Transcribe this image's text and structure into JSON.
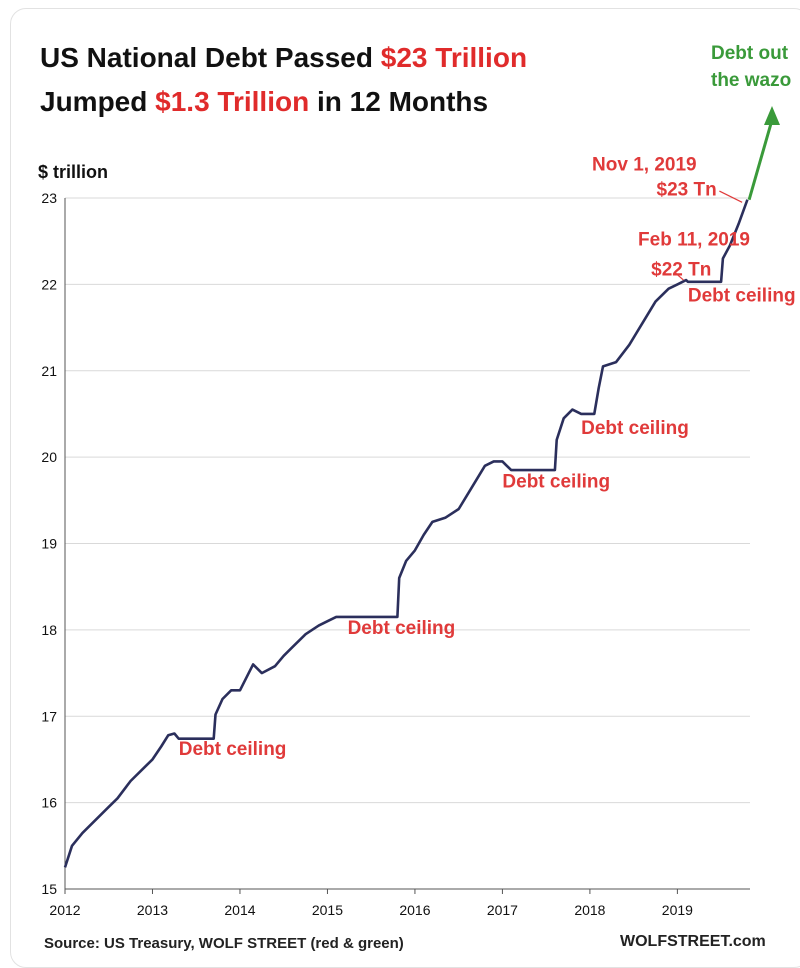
{
  "header": {
    "title_line1_prefix": "US National Debt Passed ",
    "title_line1_highlight": "$23 Trillion",
    "title_line2_prefix": "Jumped ",
    "title_line2_highlight": "$1.3 Trillion",
    "title_line2_suffix": " in 12 Months"
  },
  "footer": {
    "source": "Source: US Treasury, WOLF STREET  (red & green)",
    "brand": "WOLFSTREET.com"
  },
  "colors": {
    "line": "#2b2f5c",
    "highlight": "#e02b2b",
    "annotation": "#e03a3a",
    "green": "#3a9a3a",
    "grid": "#d9d9d9"
  },
  "chart_data": {
    "type": "line",
    "ylabel": "$ trillion",
    "xlabel": "",
    "xlim": [
      2012,
      2019.83
    ],
    "ylim": [
      15,
      23
    ],
    "yticks": [
      15,
      16,
      17,
      18,
      19,
      20,
      21,
      22,
      23
    ],
    "xticks": [
      2012,
      2013,
      2014,
      2015,
      2016,
      2017,
      2018,
      2019
    ],
    "grid": "horizontal",
    "series": [
      {
        "x": [
          2012.0,
          2012.08,
          2012.2,
          2012.35,
          2012.5,
          2012.6,
          2012.75,
          2012.9,
          2013.0,
          2013.1,
          2013.18,
          2013.25,
          2013.3,
          2013.7,
          2013.72,
          2013.8,
          2013.9,
          2014.0,
          2014.1,
          2014.15,
          2014.25,
          2014.4,
          2014.5,
          2014.6,
          2014.75,
          2014.9,
          2015.0,
          2015.1,
          2015.2,
          2015.8,
          2015.82,
          2015.9,
          2016.0,
          2016.1,
          2016.2,
          2016.35,
          2016.5,
          2016.65,
          2016.8,
          2016.9,
          2017.0,
          2017.05,
          2017.1,
          2017.6,
          2017.62,
          2017.7,
          2017.8,
          2017.9,
          2018.05,
          2018.1,
          2018.15,
          2018.3,
          2018.45,
          2018.6,
          2018.75,
          2018.9,
          2019.0,
          2019.1,
          2019.12,
          2019.5,
          2019.52,
          2019.6,
          2019.7,
          2019.8
        ],
        "y": [
          15.25,
          15.5,
          15.65,
          15.8,
          15.95,
          16.05,
          16.25,
          16.4,
          16.5,
          16.65,
          16.78,
          16.8,
          16.74,
          16.74,
          17.02,
          17.2,
          17.3,
          17.3,
          17.5,
          17.6,
          17.5,
          17.58,
          17.7,
          17.8,
          17.95,
          18.05,
          18.1,
          18.15,
          18.15,
          18.15,
          18.6,
          18.8,
          18.92,
          19.1,
          19.25,
          19.3,
          19.4,
          19.65,
          19.9,
          19.95,
          19.95,
          19.9,
          19.85,
          19.85,
          20.2,
          20.45,
          20.55,
          20.5,
          20.5,
          20.8,
          21.05,
          21.1,
          21.3,
          21.55,
          21.8,
          21.95,
          22.0,
          22.05,
          22.03,
          22.03,
          22.3,
          22.45,
          22.7,
          22.98
        ]
      }
    ],
    "annotations": [
      {
        "text": "Debt ceiling",
        "x": 2013.3,
        "y": 16.55
      },
      {
        "text": "Debt ceiling",
        "x": 2015.23,
        "y": 17.95
      },
      {
        "text": "Debt ceiling",
        "x": 2017.0,
        "y": 19.65
      },
      {
        "text": "Debt ceiling",
        "x": 2017.9,
        "y": 20.27
      },
      {
        "text": "Debt ceiling",
        "x": 2019.12,
        "y": 21.8
      },
      {
        "text": "Feb 11, 2019",
        "x": 2018.55,
        "y": 22.45
      },
      {
        "text": "$22 Tn",
        "x": 2018.7,
        "y": 22.1
      },
      {
        "text": "Nov 1, 2019",
        "x": 2019.22,
        "y": 23.32
      },
      {
        "text": "$23 Tn",
        "x": 2019.45,
        "y": 23.03
      }
    ],
    "green_annotation": [
      "Debt out",
      "the wazo"
    ]
  }
}
